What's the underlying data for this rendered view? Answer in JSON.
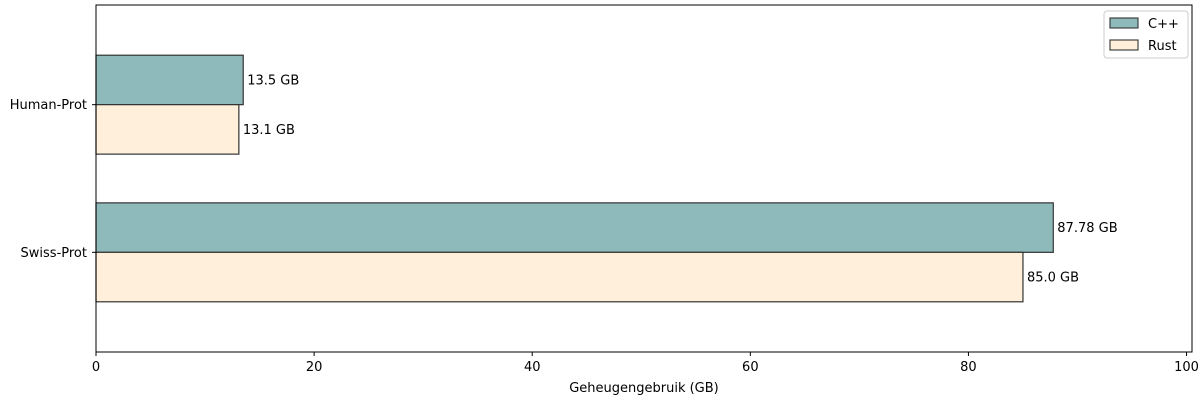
{
  "chart_data": {
    "type": "bar",
    "orientation": "horizontal",
    "categories": [
      "Human-Prot",
      "Swiss-Prot"
    ],
    "series": [
      {
        "name": "C++",
        "values": [
          13.5,
          87.78
        ],
        "labels": [
          "13.5 GB",
          "87.78 GB"
        ],
        "color": "#8fbabb"
      },
      {
        "name": "Rust",
        "values": [
          13.1,
          85.0
        ],
        "labels": [
          "13.1 GB",
          "85.0 GB"
        ],
        "color": "#ffefdb"
      }
    ],
    "xlabel": "Geheugengebruik (GB)",
    "xlim": [
      0,
      100.5
    ],
    "xticks": [
      0,
      20,
      40,
      60,
      80,
      100
    ],
    "grid": false,
    "legend": "top-right",
    "edge_color": "#333333"
  }
}
